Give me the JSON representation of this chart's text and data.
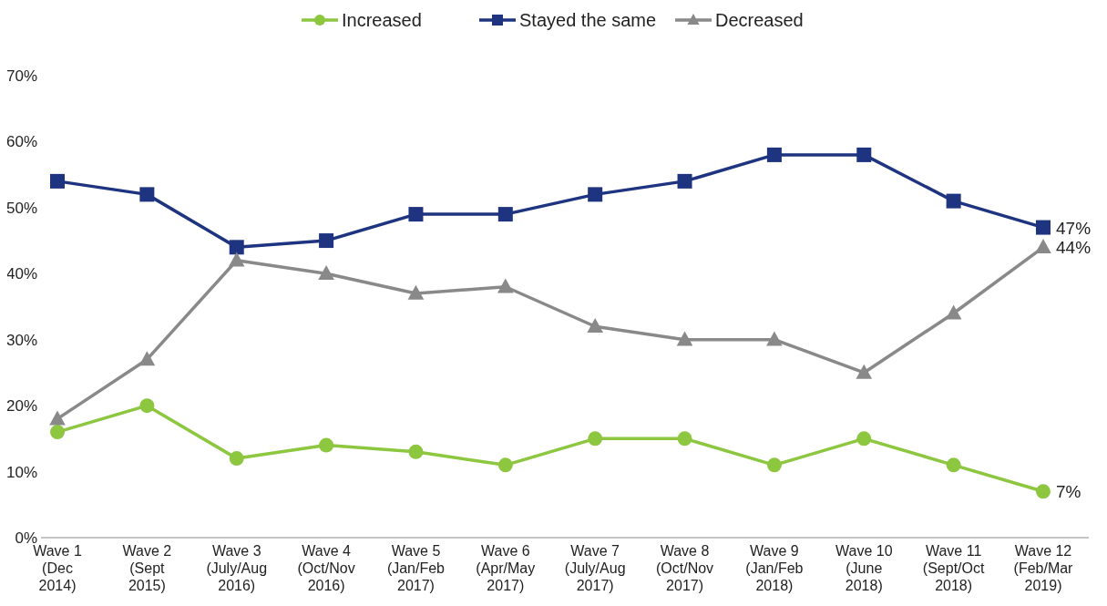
{
  "chart_data": {
    "type": "line",
    "categories": [
      "Wave 1\n(Dec\n2014)",
      "Wave 2\n(Sept\n2015)",
      "Wave 3\n(July/Aug\n2016)",
      "Wave 4\n(Oct/Nov\n2016)",
      "Wave 5\n(Jan/Feb\n2017)",
      "Wave 6\n(Apr/May\n2017)",
      "Wave 7\n(July/Aug\n2017)",
      "Wave 8\n(Oct/Nov\n2017)",
      "Wave 9\n(Jan/Feb\n2018)",
      "Wave 10\n(June\n2018)",
      "Wave 11\n(Sept/Oct\n2018)",
      "Wave 12\n(Feb/Mar\n2019)"
    ],
    "series": [
      {
        "name": "Increased",
        "color": "#8dc63f",
        "marker": "circle",
        "values": [
          16,
          20,
          12,
          14,
          13,
          11,
          15,
          15,
          11,
          15,
          11,
          7
        ],
        "value_labels": [
          null,
          null,
          null,
          null,
          null,
          null,
          null,
          null,
          null,
          null,
          null,
          "7%"
        ]
      },
      {
        "name": "Stayed the same",
        "color": "#1f3480",
        "marker": "square",
        "values": [
          54,
          52,
          44,
          45,
          49,
          49,
          52,
          54,
          58,
          58,
          51,
          47
        ],
        "value_labels": [
          null,
          null,
          null,
          null,
          null,
          null,
          null,
          null,
          null,
          null,
          null,
          "47%"
        ]
      },
      {
        "name": "Decreased",
        "color": "#898989",
        "marker": "triangle",
        "values": [
          18,
          27,
          42,
          40,
          37,
          38,
          32,
          30,
          30,
          25,
          34,
          44
        ],
        "value_labels": [
          null,
          null,
          null,
          null,
          null,
          null,
          null,
          null,
          null,
          null,
          null,
          "44%"
        ]
      }
    ],
    "ylim": [
      0,
      70
    ],
    "yticks": [
      {
        "value": 0,
        "label": "0%"
      },
      {
        "value": 10,
        "label": "10%"
      },
      {
        "value": 20,
        "label": "20%"
      },
      {
        "value": 30,
        "label": "30%"
      },
      {
        "value": 40,
        "label": "40%"
      },
      {
        "value": 50,
        "label": "50%"
      },
      {
        "value": 60,
        "label": "60%"
      },
      {
        "value": 70,
        "label": "70%"
      }
    ],
    "grid": false,
    "legend": "top",
    "line_style": "solid"
  }
}
